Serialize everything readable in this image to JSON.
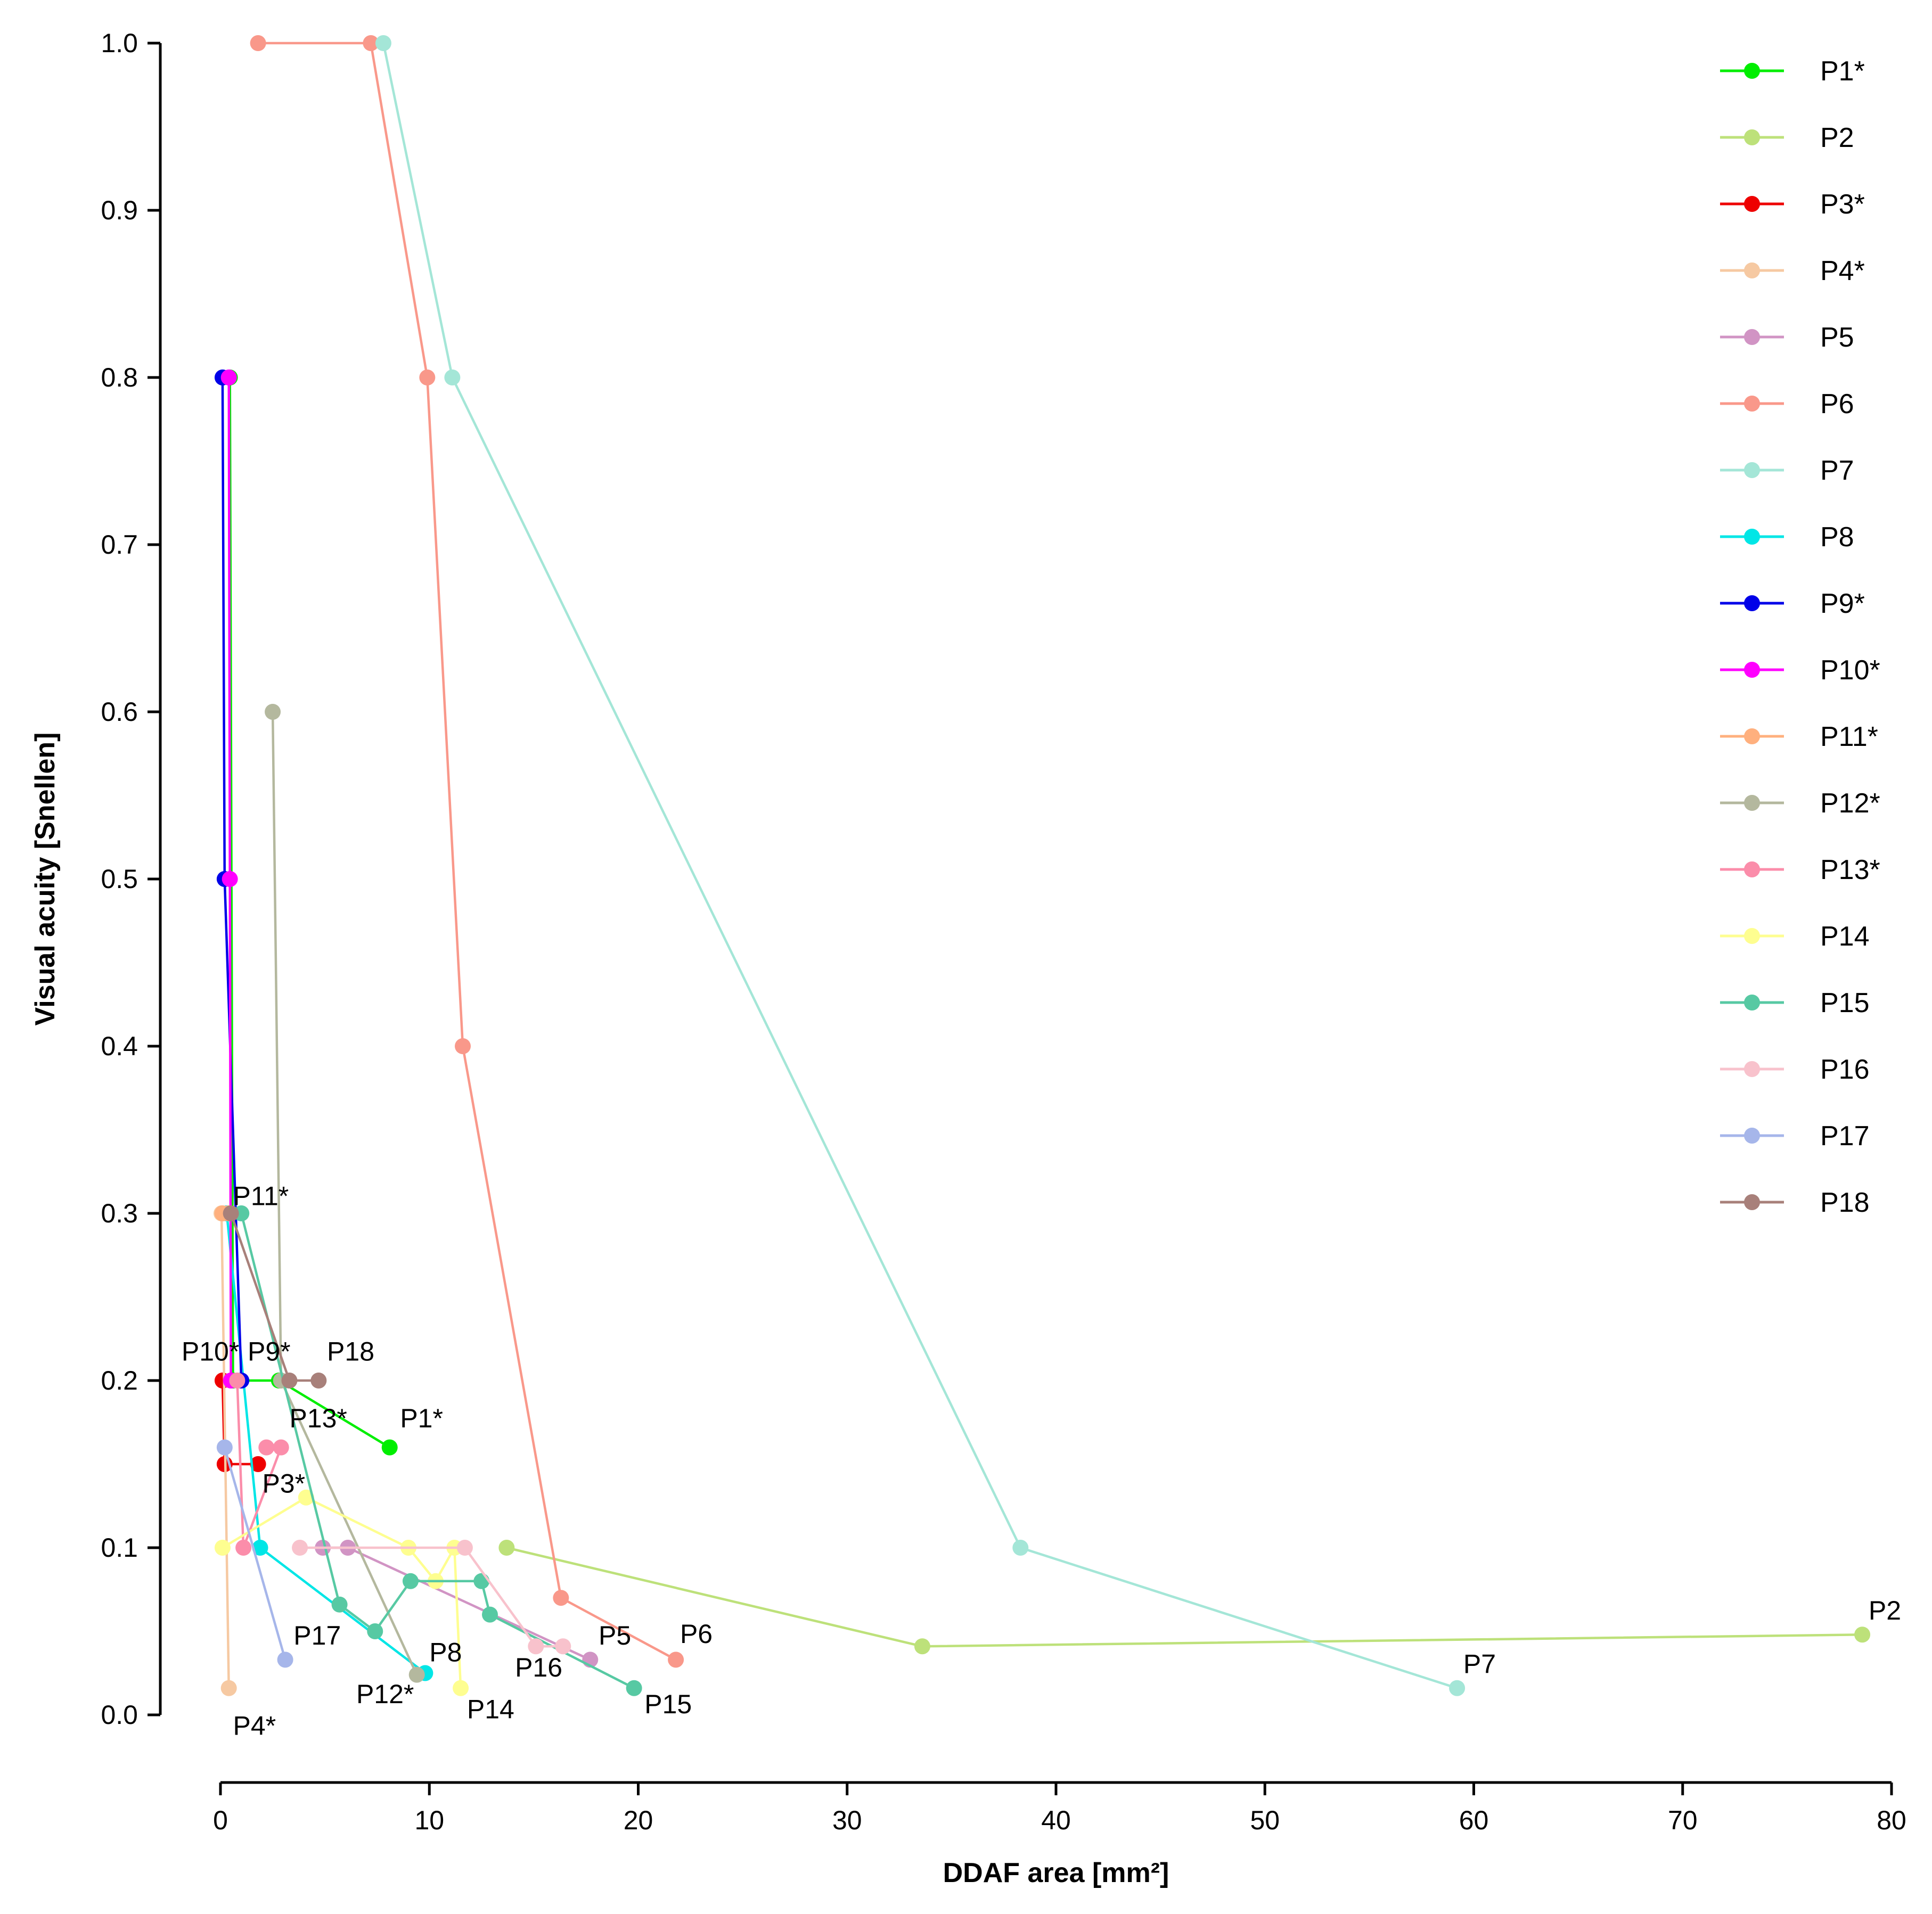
{
  "chart_data": {
    "type": "line",
    "xlabel": "DDAF area [mm²]",
    "ylabel": "Visual acuity [Snellen]",
    "xlim": [
      0,
      80
    ],
    "ylim": [
      0,
      1.0
    ],
    "xticks": [
      0,
      10,
      20,
      30,
      40,
      50,
      60,
      70,
      80
    ],
    "yticks": [
      0.0,
      0.1,
      0.2,
      0.3,
      0.4,
      0.5,
      0.6,
      0.7,
      0.8,
      0.9,
      1.0
    ],
    "xtick_labels": [
      "0",
      "10",
      "20",
      "30",
      "40",
      "50",
      "60",
      "70",
      "80"
    ],
    "ytick_labels": [
      "0.0",
      "0.1",
      "0.2",
      "0.3",
      "0.4",
      "0.5",
      "0.6",
      "0.7",
      "0.8",
      "0.9",
      "1.0"
    ],
    "legend_position": "top-right",
    "series": [
      {
        "name": "P1*",
        "color": "#00ee00",
        "points": [
          [
            0.45,
            0.8
          ],
          [
            0.6,
            0.2
          ],
          [
            2.8,
            0.2
          ],
          [
            8.1,
            0.16
          ]
        ],
        "label": "P1*"
      },
      {
        "name": "P2",
        "color": "#bde17a",
        "points": [
          [
            13.7,
            0.1
          ],
          [
            33.6,
            0.041
          ],
          [
            78.6,
            0.048
          ]
        ],
        "label": "P2"
      },
      {
        "name": "P3*",
        "color": "#ee0000",
        "points": [
          [
            0.1,
            0.2
          ],
          [
            0.2,
            0.15
          ],
          [
            1.8,
            0.15
          ]
        ],
        "label": "P3*"
      },
      {
        "name": "P4*",
        "color": "#f6c9a2",
        "points": [
          [
            0.05,
            0.3
          ],
          [
            0.4,
            0.016
          ]
        ],
        "label": "P4*"
      },
      {
        "name": "P5",
        "color": "#d194c4",
        "points": [
          [
            4.9,
            0.1
          ],
          [
            6.1,
            0.1
          ],
          [
            17.7,
            0.033
          ]
        ],
        "label": "P5"
      },
      {
        "name": "P6",
        "color": "#f9988a",
        "points": [
          [
            1.8,
            1.0
          ],
          [
            7.2,
            1.0
          ],
          [
            9.9,
            0.8
          ],
          [
            11.6,
            0.4
          ],
          [
            16.3,
            0.07
          ],
          [
            21.8,
            0.033
          ]
        ],
        "label": "P6"
      },
      {
        "name": "P7",
        "color": "#a4e6d7",
        "points": [
          [
            7.8,
            1.0
          ],
          [
            11.1,
            0.8
          ],
          [
            38.3,
            0.1
          ],
          [
            59.2,
            0.016
          ]
        ],
        "label": "P7"
      },
      {
        "name": "P8",
        "color": "#00e6e6",
        "points": [
          [
            0.3,
            0.3
          ],
          [
            1.9,
            0.1
          ],
          [
            9.8,
            0.025
          ]
        ],
        "label": "P8"
      },
      {
        "name": "P9*",
        "color": "#0000e8",
        "points": [
          [
            0.1,
            0.8
          ],
          [
            0.2,
            0.5
          ],
          [
            1.0,
            0.2
          ]
        ],
        "label": "P9*"
      },
      {
        "name": "P10*",
        "color": "#ff00ff",
        "points": [
          [
            0.4,
            0.8
          ],
          [
            0.45,
            0.5
          ],
          [
            0.5,
            0.2
          ]
        ],
        "label": "P10*"
      },
      {
        "name": "P11*",
        "color": "#ffb07e",
        "points": [
          [
            0.1,
            0.3
          ],
          [
            0.4,
            0.3
          ]
        ],
        "label": "P11*"
      },
      {
        "name": "P12*",
        "color": "#b4b89e",
        "points": [
          [
            2.5,
            0.6
          ],
          [
            2.9,
            0.2
          ],
          [
            9.4,
            0.024
          ]
        ],
        "label": "P12*"
      },
      {
        "name": "P13*",
        "color": "#fb8daa",
        "points": [
          [
            2.2,
            0.16
          ],
          [
            2.9,
            0.16
          ],
          [
            1.1,
            0.1
          ],
          [
            0.8,
            0.2
          ]
        ],
        "label": "P13*"
      },
      {
        "name": "P14",
        "color": "#fefe90",
        "points": [
          [
            0.1,
            0.1
          ],
          [
            4.1,
            0.13
          ],
          [
            9.0,
            0.1
          ],
          [
            10.3,
            0.08
          ],
          [
            11.2,
            0.1
          ],
          [
            11.5,
            0.016
          ]
        ],
        "label": "P14"
      },
      {
        "name": "P15",
        "color": "#57c9a3",
        "points": [
          [
            1.0,
            0.3
          ],
          [
            5.7,
            0.066
          ],
          [
            7.4,
            0.05
          ],
          [
            9.1,
            0.08
          ],
          [
            12.5,
            0.08
          ],
          [
            12.9,
            0.06
          ],
          [
            19.8,
            0.016
          ]
        ],
        "label": "P15"
      },
      {
        "name": "P16",
        "color": "#f8c2cc",
        "points": [
          [
            3.8,
            0.1
          ],
          [
            11.7,
            0.1
          ],
          [
            15.1,
            0.041
          ],
          [
            16.4,
            0.041
          ]
        ],
        "label": "P16"
      },
      {
        "name": "P17",
        "color": "#a6b6ea",
        "points": [
          [
            0.2,
            0.16
          ],
          [
            3.1,
            0.033
          ]
        ],
        "label": "P17"
      },
      {
        "name": "P18",
        "color": "#a8807a",
        "points": [
          [
            0.5,
            0.3
          ],
          [
            3.3,
            0.2
          ],
          [
            4.7,
            0.2
          ]
        ],
        "label": "P18"
      }
    ],
    "annotations": [
      {
        "text": "P11*",
        "x": 0.6,
        "y": 0.305,
        "anchor": "start"
      },
      {
        "text": "P10*",
        "x": 0.9,
        "y": 0.212,
        "anchor": "end"
      },
      {
        "text": "P9*",
        "x": 1.3,
        "y": 0.212,
        "anchor": "start"
      },
      {
        "text": "P18",
        "x": 5.1,
        "y": 0.212,
        "anchor": "start"
      },
      {
        "text": "P13*",
        "x": 3.3,
        "y": 0.172,
        "anchor": "start"
      },
      {
        "text": "P1*",
        "x": 8.6,
        "y": 0.172,
        "anchor": "start"
      },
      {
        "text": "P3*",
        "x": 2.0,
        "y": 0.133,
        "anchor": "start"
      },
      {
        "text": "P17",
        "x": 3.5,
        "y": 0.042,
        "anchor": "start"
      },
      {
        "text": "P8",
        "x": 10.0,
        "y": 0.032,
        "anchor": "start"
      },
      {
        "text": "P12*",
        "x": 6.5,
        "y": 0.007,
        "anchor": "start"
      },
      {
        "text": "P14",
        "x": 11.8,
        "y": -0.002,
        "anchor": "start"
      },
      {
        "text": "P16",
        "x": 14.1,
        "y": 0.023,
        "anchor": "start"
      },
      {
        "text": "P5",
        "x": 18.1,
        "y": 0.042,
        "anchor": "start"
      },
      {
        "text": "P6",
        "x": 22.0,
        "y": 0.043,
        "anchor": "start"
      },
      {
        "text": "P15",
        "x": 20.3,
        "y": 0.001,
        "anchor": "start"
      },
      {
        "text": "P7",
        "x": 59.5,
        "y": 0.025,
        "anchor": "start"
      },
      {
        "text": "P2",
        "x": 78.9,
        "y": 0.057,
        "anchor": "start"
      },
      {
        "text": "P4*",
        "x": 0.6,
        "y": -0.012,
        "anchor": "start"
      }
    ]
  }
}
